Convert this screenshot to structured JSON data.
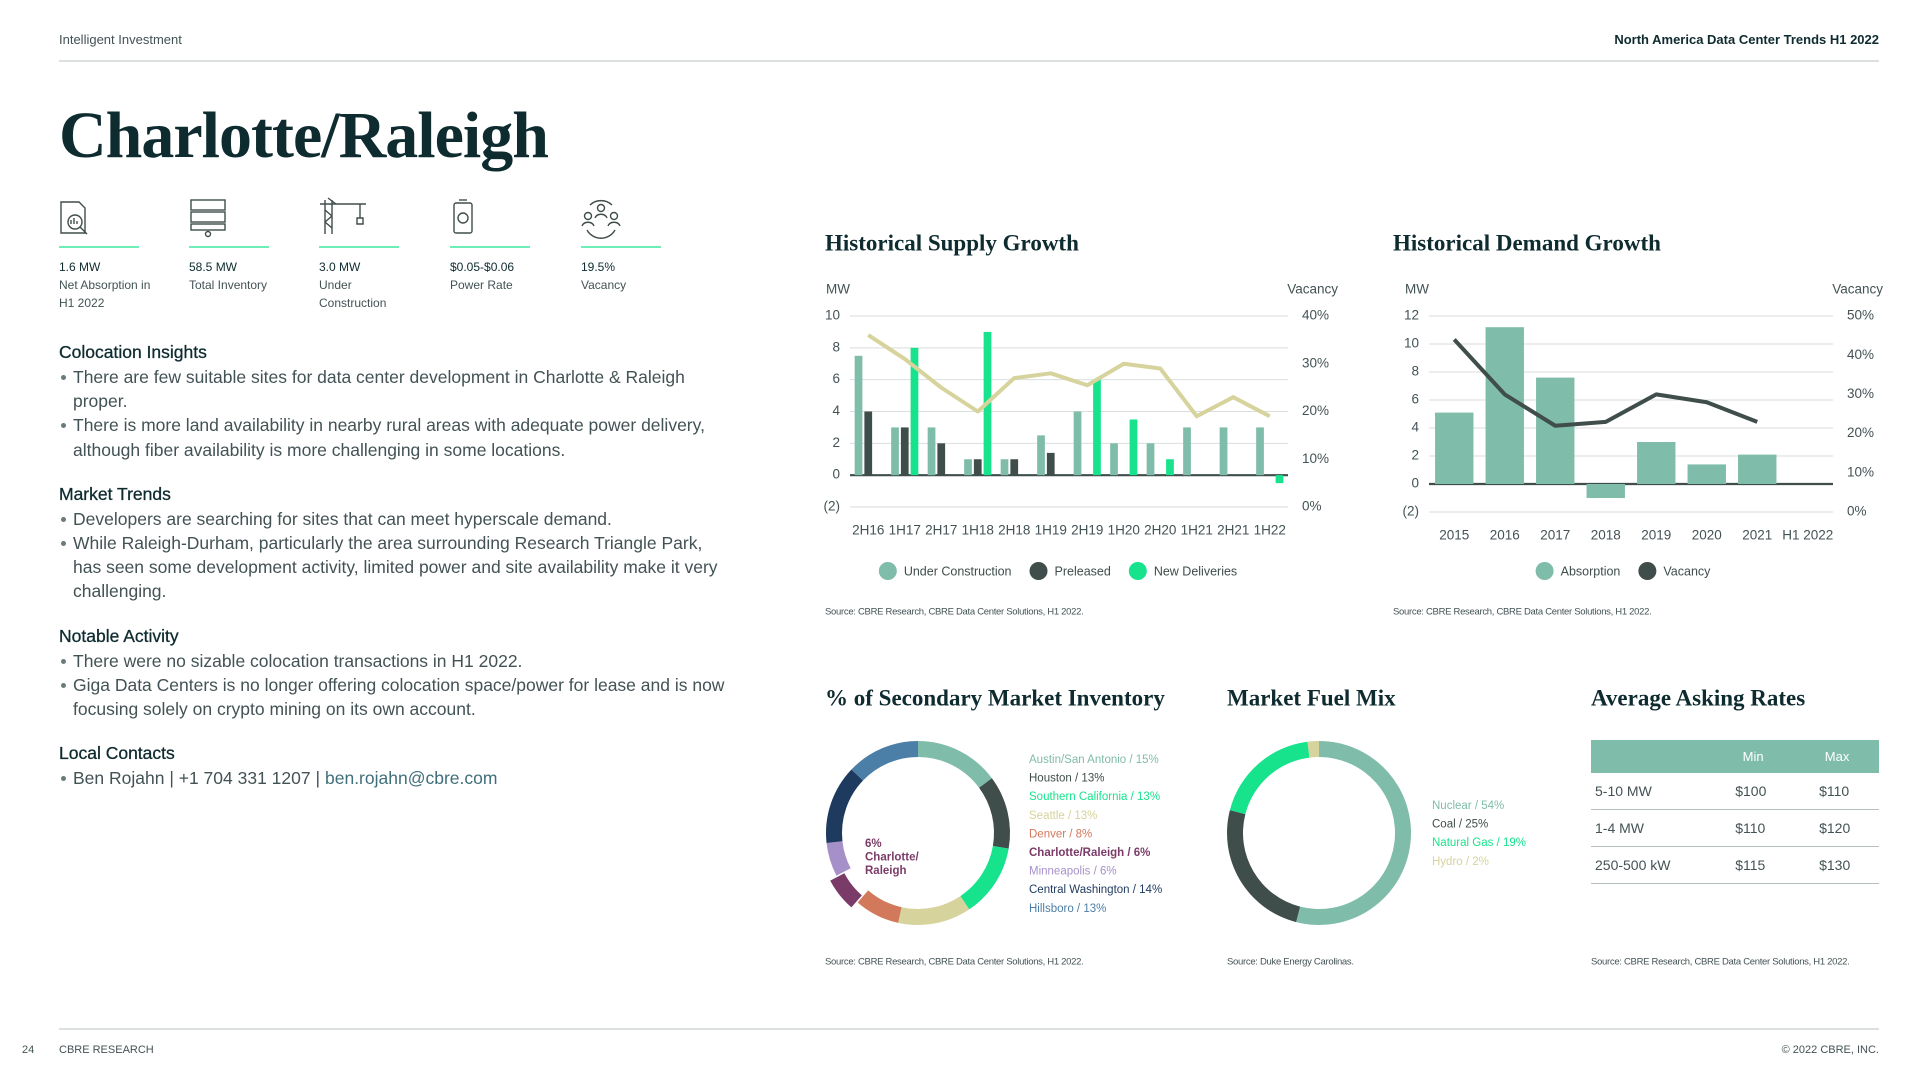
{
  "header": {
    "left": "Intelligent Investment",
    "right": "North America Data Center Trends H1 2022"
  },
  "title": "Charlotte/Raleigh",
  "stats": [
    {
      "value": "1.6 MW",
      "label": "Net Absorption in H1 2022"
    },
    {
      "value": "58.5 MW",
      "label": "Total Inventory"
    },
    {
      "value": "3.0 MW",
      "label": "Under Construction"
    },
    {
      "value": "$0.05-$0.06",
      "label": "Power Rate"
    },
    {
      "value": "19.5%",
      "label": "Vacancy"
    }
  ],
  "sections": [
    {
      "heading": "Colocation Insights",
      "bullets": [
        "There are few suitable sites for data center development in Charlotte & Raleigh proper.",
        "There is more land availability in nearby rural areas with adequate power delivery, although fiber availability is more challenging in some locations."
      ]
    },
    {
      "heading": "Market Trends",
      "bullets": [
        "Developers are searching for sites that can meet hyperscale demand.",
        "While Raleigh-Durham, particularly the area surrounding Research Triangle Park, has seen some development activity, limited power and site availability make it very challenging."
      ]
    },
    {
      "heading": "Notable Activity",
      "bullets": [
        "There were no sizable colocation transactions in H1 2022.",
        "Giga Data Centers is no longer offering colocation space/power for lease and is now focusing solely on crypto mining on its own account."
      ]
    }
  ],
  "contacts": {
    "heading": "Local Contacts",
    "text": "Ben Rojahn | +1 704 331 1207 |",
    "link": "ben.rojahn@cbre.com"
  },
  "chart_data": [
    {
      "type": "bar",
      "title": "Historical Supply Growth",
      "y_label": "MW",
      "y2_label": "Vacancy",
      "categories": [
        "2H16",
        "1H17",
        "2H17",
        "1H18",
        "2H18",
        "1H19",
        "2H19",
        "1H20",
        "2H20",
        "1H21",
        "2H21",
        "1H22"
      ],
      "series": [
        {
          "name": "Under Construction",
          "color": "#80bcaa",
          "values": [
            7.5,
            3,
            3,
            1,
            1,
            2.5,
            4,
            2,
            2,
            3,
            3,
            3
          ]
        },
        {
          "name": "Preleased",
          "color": "#3f4d4b",
          "values": [
            4,
            3,
            2,
            1,
            1,
            1.4,
            0,
            0,
            0,
            0,
            0,
            0
          ]
        },
        {
          "name": "New Deliveries",
          "color": "#17e38c",
          "values": [
            0,
            8,
            0,
            9,
            0,
            0,
            6,
            3.5,
            1,
            0,
            0,
            -0.5
          ]
        },
        {
          "type": "line",
          "axis": "y2",
          "color": "#d6d39c",
          "values": [
            36,
            31,
            25,
            20,
            27,
            28,
            25.5,
            30,
            29,
            19,
            23,
            19
          ]
        }
      ],
      "ylim": [
        -2,
        10
      ],
      "yticks": [
        {
          "value": -2,
          "label": "(2)"
        },
        0,
        2,
        4,
        6,
        8,
        10
      ],
      "y2lim": [
        0,
        40
      ],
      "y2ticks": [
        {
          "value": 0,
          "label": "0%"
        },
        {
          "value": 10,
          "label": "10%"
        },
        {
          "value": 20,
          "label": "20%"
        },
        {
          "value": 30,
          "label": "30%"
        },
        {
          "value": 40,
          "label": "40%"
        }
      ],
      "grid": true,
      "legend": "bottom",
      "source": "Source: CBRE Research, CBRE Data Center Solutions, H1 2022."
    },
    {
      "type": "bar",
      "title": "Historical Demand Growth",
      "y_label": "MW",
      "y2_label": "Vacancy",
      "categories": [
        "2015",
        "2016",
        "2017",
        "2018",
        "2019",
        "2020",
        "2021",
        "H1 2022"
      ],
      "series": [
        {
          "name": "Absorption",
          "color": "#80bcaa",
          "values": [
            5.1,
            11.2,
            7.6,
            -1,
            3,
            1.4,
            2.1,
            null
          ]
        },
        {
          "name": "Vacancy",
          "type": "line",
          "axis": "y2",
          "color": "#3f4d4b",
          "values": [
            44,
            30,
            22,
            23,
            30,
            28,
            23,
            null
          ]
        }
      ],
      "ylim": [
        -2,
        12
      ],
      "yticks": [
        {
          "value": -2,
          "label": "(2)"
        },
        0,
        2,
        4,
        6,
        8,
        10,
        12
      ],
      "y2lim": [
        0,
        50
      ],
      "y2ticks": [
        {
          "value": 0,
          "label": "0%"
        },
        {
          "value": 10,
          "label": "10%"
        },
        {
          "value": 20,
          "label": "20%"
        },
        {
          "value": 30,
          "label": "30%"
        },
        {
          "value": 40,
          "label": "40%"
        },
        {
          "value": 50,
          "label": "50%"
        }
      ],
      "grid": true,
      "legend": "bottom",
      "source": "Source: CBRE Research, CBRE Data Center Solutions, H1 2022."
    },
    {
      "type": "pie",
      "donut": true,
      "title": "% of Secondary Market Inventory",
      "legend_labels": [
        "Austin/San Antonio / 15%",
        "Houston / 13%",
        "Southern California / 13%",
        "Seattle / 13%",
        "Denver / 8%",
        "Charlotte/Raleigh / 6%",
        "Minneapolis / 6%",
        "Central Washington / 14%",
        "Hillsboro / 13%"
      ],
      "values": [
        15,
        13,
        13,
        13,
        8,
        6,
        6,
        14,
        13
      ],
      "colors": [
        "#80bcaa",
        "#3f4d4b",
        "#17e38c",
        "#d6d39c",
        "#d2785b",
        "#7b3b68",
        "#a690c9",
        "#1e3a5f",
        "#4c7fa8"
      ],
      "exploded": 5,
      "center_label": [
        "6%",
        "Charlotte/",
        "Raleigh"
      ],
      "source": "Source: CBRE Research, CBRE Data Center Solutions, H1 2022."
    },
    {
      "type": "pie",
      "donut": true,
      "title": "Market Fuel Mix",
      "legend_labels": [
        "Nuclear / 54%",
        "Coal / 25%",
        "Natural Gas / 19%",
        "Hydro / 2%"
      ],
      "values": [
        54,
        25,
        19,
        2
      ],
      "colors": [
        "#80bcaa",
        "#3f4d4b",
        "#17e38c",
        "#d6d39c"
      ],
      "source": "Source: Duke Energy Carolinas."
    }
  ],
  "table": {
    "title": "Average Asking Rates",
    "columns": [
      "Min",
      "Max"
    ],
    "rows": [
      [
        "5-10 MW",
        "$100",
        "$110"
      ],
      [
        "1-4 MW",
        "$110",
        "$120"
      ],
      [
        "250-500 kW",
        "$115",
        "$130"
      ]
    ],
    "source": "Source: CBRE Research, CBRE Data Center Solutions, H1 2022."
  },
  "footer": {
    "page": "24",
    "left": "CBRE RESEARCH",
    "right": "© 2022 CBRE, INC."
  }
}
